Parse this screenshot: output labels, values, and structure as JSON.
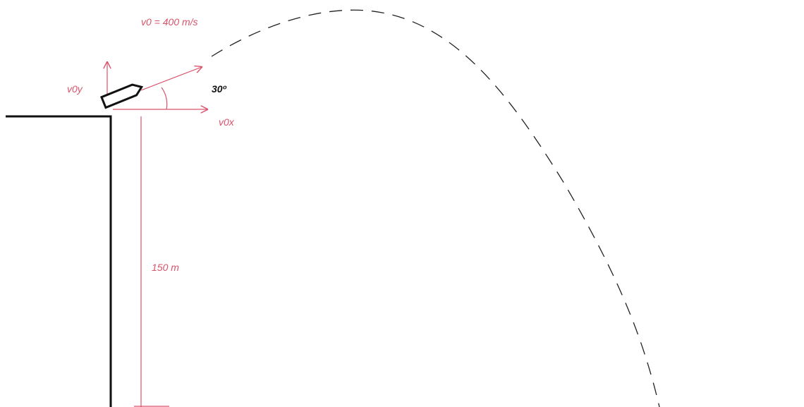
{
  "labels": {
    "velocity": "v0 = 400 m/s",
    "vertical_component": "v0y",
    "angle": "30º",
    "horizontal_component": "v0x",
    "height": "150 m"
  }
}
